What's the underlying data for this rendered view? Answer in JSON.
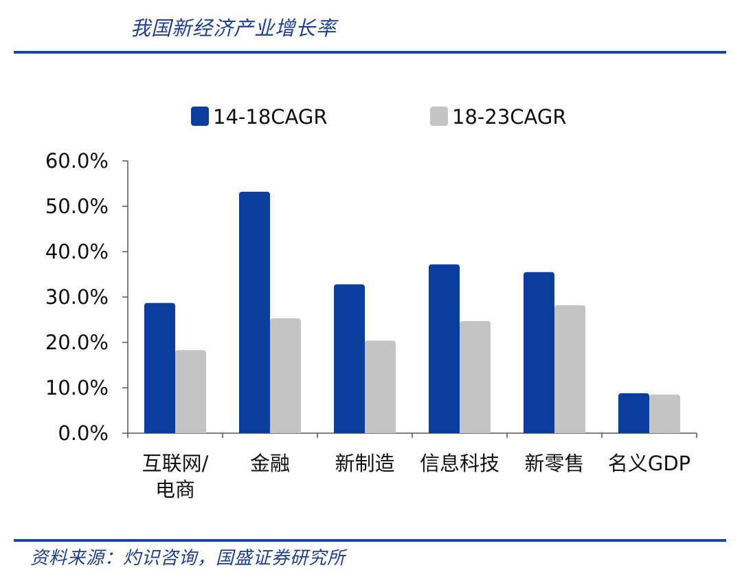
{
  "header": {
    "title": "我国新经济产业增长率"
  },
  "footer": {
    "source": "资料来源：灼识咨询，国盛证券研究所"
  },
  "colors": {
    "series1": "#0a3d9e",
    "series2": "#c4c4c4",
    "rule": "#1a4a9c",
    "text_accent": "#1f3f8e"
  },
  "chart_data": {
    "type": "bar",
    "title": "",
    "xlabel": "",
    "ylabel": "",
    "ylim": [
      0,
      60
    ],
    "yticks": [
      "0.0%",
      "10.0%",
      "20.0%",
      "30.0%",
      "40.0%",
      "50.0%",
      "60.0%"
    ],
    "categories": [
      [
        "互联网/",
        "电商"
      ],
      [
        "金融"
      ],
      [
        "新制造"
      ],
      [
        "信息科技"
      ],
      [
        "新零售"
      ],
      [
        "名义GDP"
      ]
    ],
    "series": [
      {
        "name": "14-18CAGR",
        "values": [
          28.7,
          53.2,
          32.8,
          37.2,
          35.5,
          8.8
        ]
      },
      {
        "name": "18-23CAGR",
        "values": [
          18.3,
          25.3,
          20.4,
          24.7,
          28.2,
          8.5
        ]
      }
    ],
    "legend_position": "top",
    "grid": false
  }
}
